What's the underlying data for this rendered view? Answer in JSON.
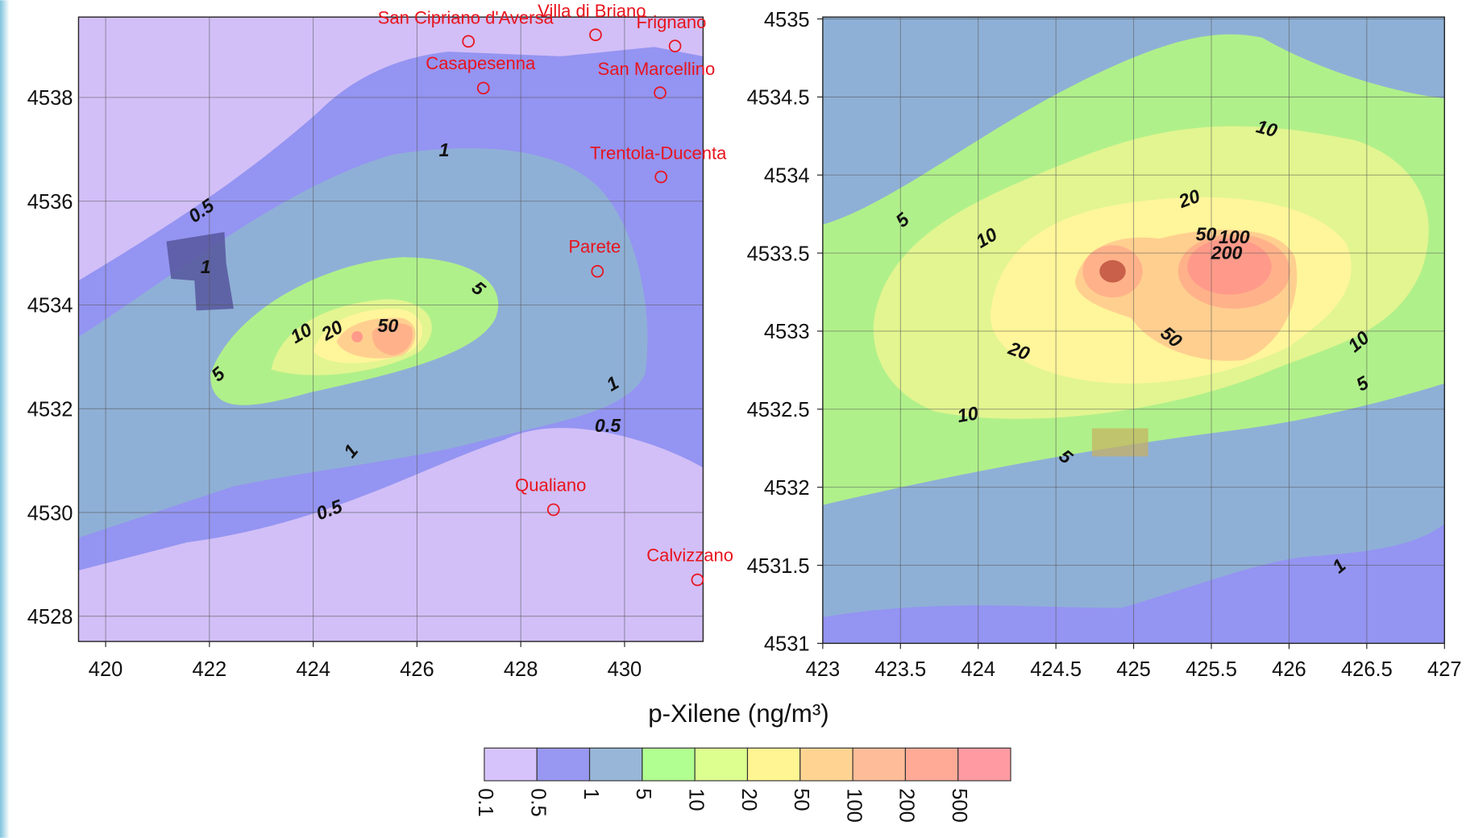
{
  "left_map": {
    "x_ticks": [
      "420",
      "422",
      "424",
      "426",
      "428",
      "430"
    ],
    "y_ticks": [
      "4538",
      "4536",
      "4534",
      "4532",
      "4530",
      "4528"
    ],
    "places": [
      "San Cipriano d'Aversa",
      "Villa di Briano",
      "Frignano",
      "Casapesenna",
      "San Marcellino",
      "Trentola-Ducenta",
      "Parete",
      "Qualiano",
      "Calvizzano"
    ],
    "contour_labels": [
      "1",
      "0.5",
      "1",
      "5",
      "10",
      "20",
      "50",
      "5",
      "1",
      "0.5",
      "1",
      "0.5"
    ]
  },
  "right_map": {
    "x_ticks": [
      "423",
      "423.5",
      "424",
      "424.5",
      "425",
      "425.5",
      "426",
      "426.5",
      "427"
    ],
    "y_ticks": [
      "4535",
      "4534.5",
      "4534",
      "4533.5",
      "4533",
      "4532.5",
      "4532",
      "4531.5",
      "4531"
    ],
    "contour_labels": [
      "10",
      "20",
      "5",
      "10",
      "50",
      "100",
      "200",
      "50",
      "20",
      "10",
      "5",
      "10",
      "5",
      "1"
    ]
  },
  "colorbar": {
    "title": "p-Xilene (ng/m³)",
    "levels": [
      "0.1",
      "0.5",
      "1",
      "5",
      "10",
      "20",
      "50",
      "100",
      "200",
      "500"
    ]
  }
}
